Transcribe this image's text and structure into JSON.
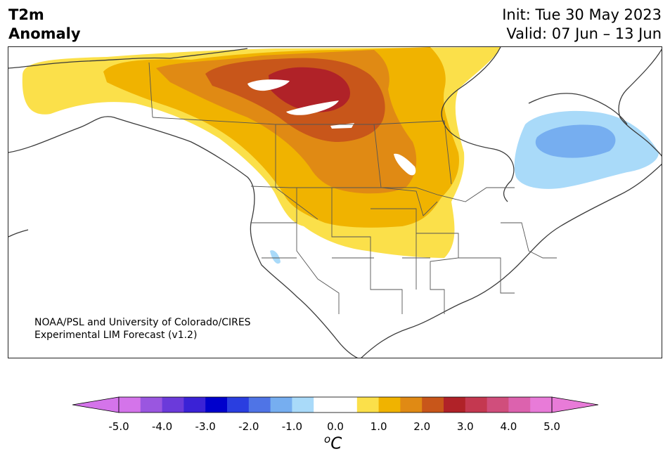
{
  "header": {
    "title_line1": "T2m",
    "title_line2": "Anomaly",
    "init": "Init: Tue 30 May 2023",
    "valid": "Valid: 07 Jun – 13 Jun"
  },
  "credit": {
    "line1": "NOAA/PSL and University of Colorado/CIRES",
    "line2": "Experimental LIM Forecast (v1.2)"
  },
  "colorbar": {
    "unit_base": "C",
    "unit_sup": "o",
    "tick_labels": [
      "-5.0",
      "-4.0",
      "-3.0",
      "-2.0",
      "-1.0",
      "0.0",
      "1.0",
      "2.0",
      "3.0",
      "4.0",
      "5.0"
    ],
    "colors": [
      "#d474ea",
      "#9a56e0",
      "#6b3ada",
      "#3a22d6",
      "#0000cc",
      "#2a3ee0",
      "#4f74e6",
      "#76aef0",
      "#a9daf9",
      "#ffffff",
      "#ffffff",
      "#fbe04a",
      "#f0b300",
      "#e08a14",
      "#c8561a",
      "#b02228",
      "#c43850",
      "#d04e7c",
      "#dc62ae",
      "#e87bd8"
    ],
    "extend_low_color": "#d474ea",
    "extend_high_color": "#e87bd8"
  },
  "map": {
    "anomaly_colors": {
      "plus_0_5": "#fbe04a",
      "plus_1_0": "#f0b300",
      "plus_1_5": "#e08a14",
      "plus_2_0": "#c8561a",
      "plus_2_5": "#b02228",
      "minus_0_5": "#a9daf9",
      "minus_1_0": "#76aef0"
    }
  }
}
